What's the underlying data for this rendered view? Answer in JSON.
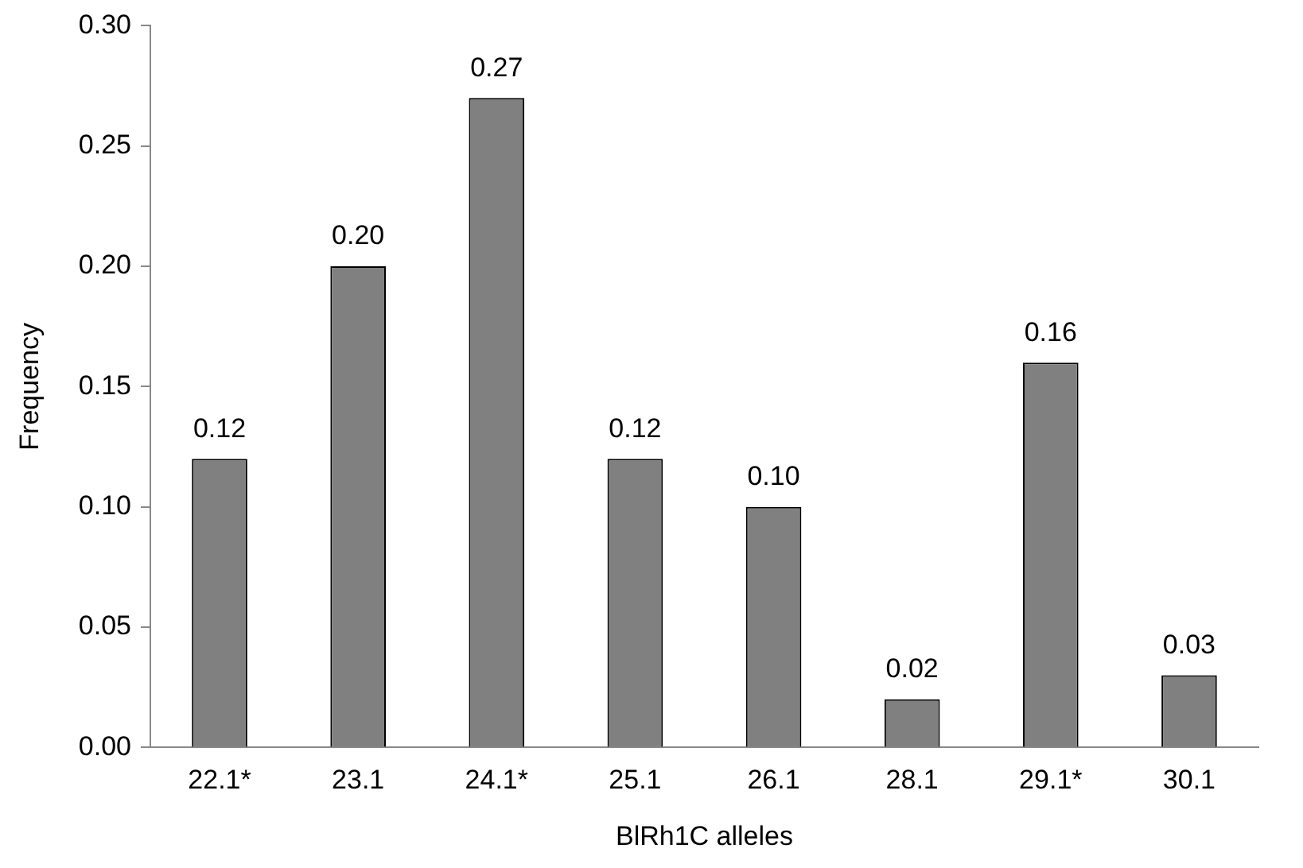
{
  "chart_data": {
    "type": "bar",
    "xlabel": "BlRh1C alleles",
    "ylabel": "Frequency",
    "categories": [
      "22.1*",
      "23.1",
      "24.1*",
      "25.1",
      "26.1",
      "28.1",
      "29.1*",
      "30.1"
    ],
    "values": [
      0.12,
      0.2,
      0.27,
      0.12,
      0.1,
      0.02,
      0.16,
      0.03
    ],
    "value_labels": [
      "0.12",
      "0.20",
      "0.27",
      "0.12",
      "0.10",
      "0.02",
      "0.16",
      "0.03"
    ],
    "color": "#808080",
    "ylim": [
      0,
      0.3
    ],
    "yticks": [
      {
        "value": 0,
        "label": "0.00"
      },
      {
        "value": 0.05,
        "label": "0.05"
      },
      {
        "value": 0.1,
        "label": "0.10"
      },
      {
        "value": 0.15,
        "label": "0.15"
      },
      {
        "value": 0.2,
        "label": "0.20"
      },
      {
        "value": 0.25,
        "label": "0.25"
      },
      {
        "value": 0.3,
        "label": "0.30"
      }
    ],
    "grid": false,
    "legend": false
  }
}
